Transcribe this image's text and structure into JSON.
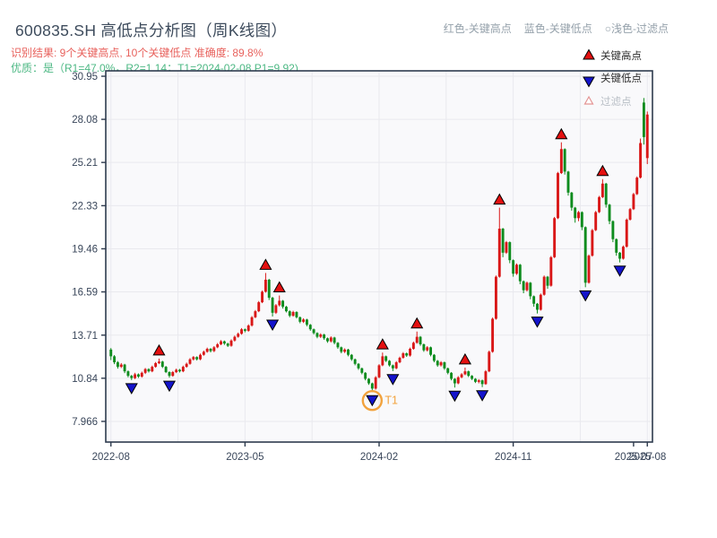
{
  "header": {
    "title": "600835.SH 高低点分析图（周K线图）",
    "legend_items": [
      {
        "label": "红色-关键高点"
      },
      {
        "label": "蓝色-关键低点"
      },
      {
        "label": "○浅色-过滤点"
      }
    ],
    "result_line": "识别结果: 9个关键高点, 10个关键低点  准确度: 89.8%",
    "quality_line": "优质：是（R1=47.0%，R2=1.14；T1=2024-02-08 P1=9.92)"
  },
  "colors": {
    "up_candle": "#d91717",
    "down_candle": "#0e8c1e",
    "key_high_marker": "#e41010",
    "key_low_marker": "#1414cc",
    "marker_edge": "#000000",
    "filter_marker_edge": "#e49494",
    "t1_orange": "#f2a23c",
    "spine": "#2e3b4e",
    "grid": "#e9e9ee",
    "plot_bg": "#f9f9fb",
    "tick_label": "#39465a",
    "legend_text": "#2b2b2b",
    "legend_text_disabled": "#b9bfc6"
  },
  "chart_data": {
    "type": "candlestick",
    "subtype": "weekly-kline-high-low-analysis",
    "grid": true,
    "y_ticks": [
      30.95,
      28.08,
      25.21,
      22.33,
      19.46,
      16.59,
      13.71,
      10.84,
      7.966
    ],
    "y_range": [
      6.59,
      31.31
    ],
    "x_range": [
      -1.5,
      157.5
    ],
    "x_tick_labels": [
      "2022-08",
      "2023-05",
      "2024-02",
      "2024-11",
      "2025-07",
      "2025-08"
    ],
    "x_tick_indices": [
      0,
      39,
      78,
      117,
      152,
      156
    ],
    "x_minor_grid_indices": [
      0,
      19.5,
      39,
      58.5,
      78,
      97.5,
      117,
      136.5,
      156
    ],
    "legend": [
      {
        "label": "关键高点",
        "marker": "triangle-up",
        "enabled": true
      },
      {
        "label": "关键低点",
        "marker": "triangle-down",
        "enabled": true
      },
      {
        "label": "过滤点",
        "marker": "triangle-open",
        "enabled": false
      }
    ],
    "key_highs": [
      {
        "i": 14,
        "price": 12.15
      },
      {
        "i": 45,
        "price": 17.85
      },
      {
        "i": 49,
        "price": 16.35
      },
      {
        "i": 79,
        "price": 12.55
      },
      {
        "i": 89,
        "price": 13.95
      },
      {
        "i": 103,
        "price": 11.55
      },
      {
        "i": 113,
        "price": 22.2
      },
      {
        "i": 131,
        "price": 26.55
      },
      {
        "i": 143,
        "price": 24.1
      }
    ],
    "key_lows": [
      {
        "i": 6,
        "price": 10.72
      },
      {
        "i": 17,
        "price": 10.88
      },
      {
        "i": 47,
        "price": 14.95
      },
      {
        "i": 76,
        "price": 9.92
      },
      {
        "i": 82,
        "price": 11.32
      },
      {
        "i": 100,
        "price": 10.22
      },
      {
        "i": 108,
        "price": 10.25
      },
      {
        "i": 124,
        "price": 15.15
      },
      {
        "i": 138,
        "price": 16.9
      },
      {
        "i": 148,
        "price": 18.55
      }
    ],
    "t1_annotation": {
      "index": 76,
      "label": "T1"
    },
    "candles": [
      [
        12.75,
        12.85,
        12.05,
        12.3
      ],
      [
        12.3,
        12.38,
        11.78,
        11.9
      ],
      [
        11.9,
        11.98,
        11.48,
        11.6
      ],
      [
        11.6,
        11.85,
        11.52,
        11.75
      ],
      [
        11.75,
        11.8,
        11.18,
        11.3
      ],
      [
        11.3,
        11.36,
        10.9,
        11.0
      ],
      [
        11.0,
        11.06,
        10.72,
        10.85
      ],
      [
        10.85,
        11.2,
        10.78,
        11.1
      ],
      [
        11.1,
        11.16,
        10.86,
        10.95
      ],
      [
        10.95,
        11.28,
        10.88,
        11.2
      ],
      [
        11.2,
        11.52,
        11.12,
        11.45
      ],
      [
        11.45,
        11.5,
        11.22,
        11.3
      ],
      [
        11.3,
        11.68,
        11.24,
        11.6
      ],
      [
        11.6,
        11.92,
        11.54,
        11.85
      ],
      [
        11.85,
        12.15,
        11.78,
        11.95
      ],
      [
        11.95,
        12.0,
        11.52,
        11.6
      ],
      [
        11.6,
        11.66,
        11.18,
        11.25
      ],
      [
        11.25,
        11.3,
        10.88,
        11.0
      ],
      [
        11.0,
        11.32,
        10.94,
        11.25
      ],
      [
        11.25,
        11.48,
        11.18,
        11.4
      ],
      [
        11.4,
        11.46,
        11.22,
        11.3
      ],
      [
        11.3,
        11.68,
        11.24,
        11.6
      ],
      [
        11.6,
        11.88,
        11.54,
        11.8
      ],
      [
        11.8,
        12.18,
        11.74,
        12.1
      ],
      [
        12.1,
        12.32,
        12.02,
        12.25
      ],
      [
        12.25,
        12.3,
        12.02,
        12.1
      ],
      [
        12.1,
        12.48,
        12.04,
        12.4
      ],
      [
        12.4,
        12.68,
        12.34,
        12.6
      ],
      [
        12.6,
        12.88,
        12.54,
        12.8
      ],
      [
        12.8,
        12.85,
        12.56,
        12.65
      ],
      [
        12.65,
        12.98,
        12.58,
        12.9
      ],
      [
        12.9,
        13.18,
        12.84,
        13.1
      ],
      [
        13.1,
        13.38,
        13.04,
        13.3
      ],
      [
        13.3,
        13.35,
        13.06,
        13.15
      ],
      [
        13.15,
        13.2,
        12.92,
        13.0
      ],
      [
        13.0,
        13.43,
        12.94,
        13.35
      ],
      [
        13.35,
        13.68,
        13.28,
        13.6
      ],
      [
        13.6,
        13.88,
        13.54,
        13.8
      ],
      [
        13.8,
        14.18,
        13.74,
        14.1
      ],
      [
        14.1,
        14.15,
        13.9,
        14.0
      ],
      [
        14.0,
        14.43,
        13.94,
        14.35
      ],
      [
        14.35,
        14.98,
        14.28,
        14.9
      ],
      [
        14.9,
        15.38,
        14.84,
        15.3
      ],
      [
        15.3,
        15.98,
        15.24,
        15.9
      ],
      [
        15.9,
        16.68,
        15.84,
        16.6
      ],
      [
        16.6,
        17.85,
        16.54,
        17.4
      ],
      [
        17.4,
        17.46,
        16.05,
        16.2
      ],
      [
        16.2,
        16.26,
        14.95,
        15.2
      ],
      [
        15.2,
        15.78,
        15.12,
        15.7
      ],
      [
        15.7,
        16.35,
        15.62,
        16.0
      ],
      [
        16.0,
        16.05,
        15.48,
        15.6
      ],
      [
        15.6,
        15.66,
        15.22,
        15.3
      ],
      [
        15.3,
        15.36,
        14.9,
        15.0
      ],
      [
        15.0,
        15.33,
        14.94,
        15.25
      ],
      [
        15.25,
        15.3,
        14.82,
        14.9
      ],
      [
        14.9,
        14.95,
        14.5,
        14.6
      ],
      [
        14.6,
        14.83,
        14.52,
        14.75
      ],
      [
        14.75,
        14.8,
        14.3,
        14.4
      ],
      [
        14.4,
        14.45,
        14.0,
        14.1
      ],
      [
        14.1,
        14.15,
        13.76,
        13.85
      ],
      [
        13.85,
        13.9,
        13.5,
        13.6
      ],
      [
        13.6,
        13.83,
        13.52,
        13.75
      ],
      [
        13.75,
        13.8,
        13.4,
        13.5
      ],
      [
        13.5,
        13.55,
        13.2,
        13.3
      ],
      [
        13.3,
        13.63,
        13.22,
        13.55
      ],
      [
        13.55,
        13.6,
        13.1,
        13.2
      ],
      [
        13.2,
        13.25,
        12.8,
        12.9
      ],
      [
        12.9,
        12.95,
        12.5,
        12.6
      ],
      [
        12.6,
        12.83,
        12.52,
        12.75
      ],
      [
        12.75,
        12.8,
        12.3,
        12.4
      ],
      [
        12.4,
        12.45,
        12.0,
        12.1
      ],
      [
        12.1,
        12.15,
        11.7,
        11.8
      ],
      [
        11.8,
        11.85,
        11.4,
        11.5
      ],
      [
        11.5,
        11.55,
        11.1,
        11.2
      ],
      [
        11.2,
        11.25,
        10.7,
        10.8
      ],
      [
        10.8,
        10.85,
        10.4,
        10.5
      ],
      [
        10.5,
        10.55,
        9.92,
        10.15
      ],
      [
        10.15,
        10.98,
        10.08,
        10.9
      ],
      [
        10.9,
        11.78,
        10.84,
        11.7
      ],
      [
        11.7,
        12.55,
        11.64,
        12.3
      ],
      [
        12.3,
        12.35,
        11.92,
        12.0
      ],
      [
        12.0,
        12.05,
        11.62,
        11.7
      ],
      [
        11.7,
        11.75,
        11.32,
        11.5
      ],
      [
        11.5,
        11.98,
        11.44,
        11.9
      ],
      [
        11.9,
        12.28,
        11.84,
        12.2
      ],
      [
        12.2,
        12.58,
        12.14,
        12.5
      ],
      [
        12.5,
        12.55,
        12.26,
        12.35
      ],
      [
        12.35,
        12.88,
        12.28,
        12.8
      ],
      [
        12.8,
        13.28,
        12.74,
        13.2
      ],
      [
        13.2,
        13.95,
        13.14,
        13.6
      ],
      [
        13.6,
        13.65,
        13.0,
        13.1
      ],
      [
        13.1,
        13.15,
        12.6,
        12.7
      ],
      [
        12.7,
        12.98,
        12.62,
        12.9
      ],
      [
        12.9,
        12.95,
        12.3,
        12.4
      ],
      [
        12.4,
        12.45,
        11.9,
        12.0
      ],
      [
        12.0,
        12.05,
        11.6,
        11.7
      ],
      [
        11.7,
        11.98,
        11.62,
        11.9
      ],
      [
        11.9,
        11.95,
        11.4,
        11.5
      ],
      [
        11.5,
        11.55,
        11.1,
        11.2
      ],
      [
        11.2,
        11.25,
        10.7,
        10.8
      ],
      [
        10.8,
        10.85,
        10.22,
        10.5
      ],
      [
        10.5,
        10.98,
        10.44,
        10.9
      ],
      [
        10.9,
        11.18,
        10.84,
        11.1
      ],
      [
        11.1,
        11.55,
        11.04,
        11.3
      ],
      [
        11.3,
        11.35,
        10.92,
        11.0
      ],
      [
        11.0,
        11.05,
        10.72,
        10.8
      ],
      [
        10.8,
        10.85,
        10.52,
        10.6
      ],
      [
        10.6,
        10.78,
        10.5,
        10.7
      ],
      [
        10.7,
        10.75,
        10.25,
        10.45
      ],
      [
        10.45,
        11.38,
        10.4,
        11.3
      ],
      [
        11.3,
        12.68,
        11.24,
        12.6
      ],
      [
        12.6,
        14.88,
        12.54,
        14.8
      ],
      [
        14.8,
        17.68,
        14.74,
        17.6
      ],
      [
        17.6,
        22.2,
        17.54,
        20.8
      ],
      [
        20.8,
        20.85,
        18.9,
        19.2
      ],
      [
        19.2,
        19.98,
        19.12,
        19.9
      ],
      [
        19.9,
        19.95,
        18.5,
        18.7
      ],
      [
        18.7,
        18.75,
        17.6,
        17.8
      ],
      [
        17.8,
        18.48,
        17.72,
        18.4
      ],
      [
        18.4,
        18.45,
        17.1,
        17.3
      ],
      [
        17.3,
        17.35,
        16.5,
        16.7
      ],
      [
        16.7,
        17.28,
        16.62,
        17.2
      ],
      [
        17.2,
        17.25,
        16.1,
        16.3
      ],
      [
        16.3,
        16.35,
        15.6,
        15.8
      ],
      [
        15.8,
        15.85,
        15.15,
        15.4
      ],
      [
        15.4,
        16.48,
        15.34,
        16.4
      ],
      [
        16.4,
        17.68,
        16.34,
        17.6
      ],
      [
        17.6,
        17.65,
        16.8,
        17.0
      ],
      [
        17.0,
        18.98,
        16.94,
        18.9
      ],
      [
        18.9,
        21.58,
        18.84,
        21.5
      ],
      [
        21.5,
        24.58,
        21.44,
        24.5
      ],
      [
        24.5,
        26.55,
        24.44,
        26.1
      ],
      [
        26.1,
        26.15,
        24.4,
        24.6
      ],
      [
        24.6,
        24.65,
        23.0,
        23.2
      ],
      [
        23.2,
        23.25,
        22.0,
        22.2
      ],
      [
        22.2,
        22.25,
        21.2,
        21.5
      ],
      [
        21.5,
        21.98,
        21.3,
        21.9
      ],
      [
        21.9,
        21.95,
        20.7,
        20.9
      ],
      [
        20.9,
        20.95,
        16.9,
        17.2
      ],
      [
        17.2,
        19.08,
        17.14,
        19.0
      ],
      [
        19.0,
        20.78,
        18.94,
        20.7
      ],
      [
        20.7,
        21.98,
        20.64,
        21.9
      ],
      [
        21.9,
        22.98,
        21.84,
        22.9
      ],
      [
        22.9,
        24.1,
        22.84,
        23.8
      ],
      [
        23.8,
        23.85,
        22.2,
        22.4
      ],
      [
        22.4,
        22.45,
        21.1,
        21.3
      ],
      [
        21.3,
        21.35,
        19.9,
        20.1
      ],
      [
        20.1,
        20.15,
        19.0,
        19.2
      ],
      [
        19.2,
        19.25,
        18.55,
        18.8
      ],
      [
        18.8,
        19.68,
        18.74,
        19.6
      ],
      [
        19.6,
        21.48,
        19.54,
        21.4
      ],
      [
        21.4,
        22.18,
        21.34,
        22.1
      ],
      [
        22.1,
        23.18,
        22.04,
        23.1
      ],
      [
        23.1,
        24.28,
        23.04,
        24.2
      ],
      [
        24.2,
        26.8,
        24.14,
        26.5
      ],
      [
        29.2,
        29.5,
        26.4,
        26.9
      ],
      [
        25.5,
        28.6,
        25.1,
        28.4
      ]
    ]
  }
}
